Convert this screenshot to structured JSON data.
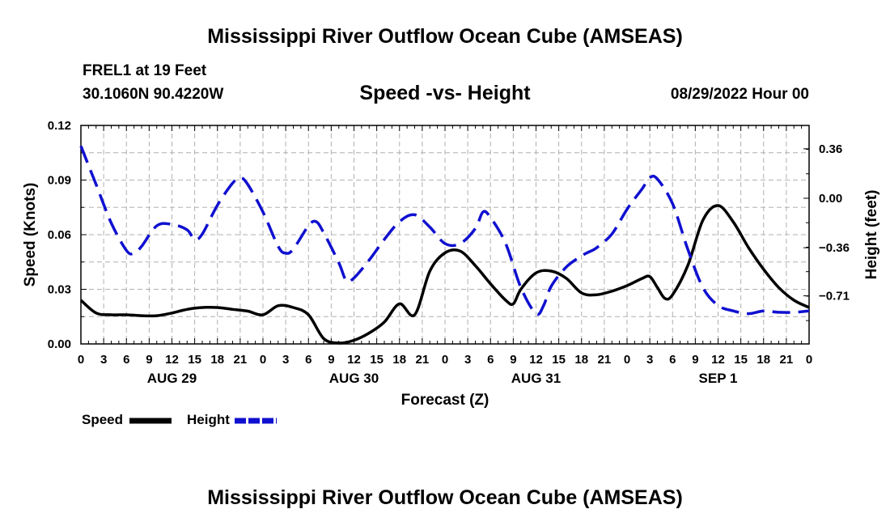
{
  "title": "Mississippi River Outflow Ocean Cube (AMSEAS)",
  "station": {
    "name": "FREL1 at 19 Feet",
    "coords": "30.1060N  90.4220W"
  },
  "run_stamp": "08/29/2022 Hour 00",
  "footer_title": "Mississippi River Outflow Ocean Cube (AMSEAS)",
  "colors": {
    "speed": "#000000",
    "height": "#1010d0",
    "grid": "#b0b0b0"
  },
  "chart_data": {
    "type": "line",
    "title": "Speed -vs- Height",
    "xlabel": "Forecast (Z)",
    "ylabel_left": "Speed (Knots)",
    "ylabel_right": "Height (feet)",
    "x_range_hours": [
      0,
      96
    ],
    "x_tick_step_hours": 3,
    "x_tick_labels": [
      "0",
      "3",
      "6",
      "9",
      "12",
      "15",
      "18",
      "21",
      "0",
      "3",
      "6",
      "9",
      "12",
      "15",
      "18",
      "21",
      "0",
      "3",
      "6",
      "9",
      "12",
      "15",
      "18",
      "21",
      "0",
      "3",
      "6",
      "9",
      "12",
      "15",
      "18",
      "21",
      "0"
    ],
    "day_labels": [
      {
        "label": "AUG 29",
        "hour": 12
      },
      {
        "label": "AUG 30",
        "hour": 36
      },
      {
        "label": "AUG 31",
        "hour": 60
      },
      {
        "label": "SEP 1",
        "hour": 84
      }
    ],
    "ylim_left": [
      0,
      0.12
    ],
    "yticks_left": [
      "0.00",
      "0.03",
      "0.06",
      "0.09",
      "0.12"
    ],
    "ylim_right": [
      -1.06,
      0.53
    ],
    "yticks_right": [
      {
        "value": 0.36,
        "label": "0.36"
      },
      {
        "value": 0.0,
        "label": "0.00"
      },
      {
        "value": -0.36,
        "label": "−0.36"
      },
      {
        "value": -0.71,
        "label": "−0.71"
      }
    ],
    "series": [
      {
        "name": "Speed",
        "axis": "left",
        "style": "solid",
        "points": [
          [
            0,
            0.024
          ],
          [
            2,
            0.017
          ],
          [
            4,
            0.016
          ],
          [
            6,
            0.016
          ],
          [
            8,
            0.0155
          ],
          [
            10,
            0.0155
          ],
          [
            12,
            0.017
          ],
          [
            14,
            0.019
          ],
          [
            16,
            0.02
          ],
          [
            18,
            0.02
          ],
          [
            20,
            0.019
          ],
          [
            22,
            0.018
          ],
          [
            24,
            0.016
          ],
          [
            26,
            0.021
          ],
          [
            28,
            0.02
          ],
          [
            30,
            0.016
          ],
          [
            32,
            0.003
          ],
          [
            34,
            0.0005
          ],
          [
            36,
            0.002
          ],
          [
            38,
            0.006
          ],
          [
            40,
            0.012
          ],
          [
            42,
            0.022
          ],
          [
            44,
            0.016
          ],
          [
            46,
            0.04
          ],
          [
            48,
            0.05
          ],
          [
            50,
            0.051
          ],
          [
            52,
            0.043
          ],
          [
            54,
            0.033
          ],
          [
            56,
            0.024
          ],
          [
            57,
            0.022
          ],
          [
            58,
            0.03
          ],
          [
            60,
            0.039
          ],
          [
            62,
            0.04
          ],
          [
            64,
            0.036
          ],
          [
            66,
            0.028
          ],
          [
            68,
            0.027
          ],
          [
            70,
            0.029
          ],
          [
            72,
            0.032
          ],
          [
            74,
            0.036
          ],
          [
            75,
            0.037
          ],
          [
            76,
            0.031
          ],
          [
            77,
            0.025
          ],
          [
            78,
            0.027
          ],
          [
            80,
            0.043
          ],
          [
            82,
            0.068
          ],
          [
            84,
            0.076
          ],
          [
            86,
            0.067
          ],
          [
            88,
            0.053
          ],
          [
            90,
            0.041
          ],
          [
            92,
            0.031
          ],
          [
            94,
            0.024
          ],
          [
            96,
            0.02
          ]
        ]
      },
      {
        "name": "Height",
        "axis": "right",
        "style": "dashed",
        "points": [
          [
            0,
            0.38
          ],
          [
            2,
            0.1
          ],
          [
            4,
            -0.18
          ],
          [
            6,
            -0.38
          ],
          [
            7,
            -0.4
          ],
          [
            8,
            -0.35
          ],
          [
            10,
            -0.2
          ],
          [
            12,
            -0.19
          ],
          [
            14,
            -0.23
          ],
          [
            15,
            -0.3
          ],
          [
            16,
            -0.26
          ],
          [
            18,
            -0.05
          ],
          [
            20,
            0.11
          ],
          [
            21,
            0.15
          ],
          [
            22,
            0.1
          ],
          [
            24,
            -0.1
          ],
          [
            26,
            -0.35
          ],
          [
            27,
            -0.4
          ],
          [
            28,
            -0.37
          ],
          [
            30,
            -0.2
          ],
          [
            31,
            -0.17
          ],
          [
            32,
            -0.25
          ],
          [
            34,
            -0.47
          ],
          [
            35,
            -0.6
          ],
          [
            36,
            -0.58
          ],
          [
            38,
            -0.45
          ],
          [
            40,
            -0.3
          ],
          [
            42,
            -0.17
          ],
          [
            44,
            -0.12
          ],
          [
            46,
            -0.21
          ],
          [
            48,
            -0.33
          ],
          [
            50,
            -0.33
          ],
          [
            52,
            -0.22
          ],
          [
            53,
            -0.1
          ],
          [
            54,
            -0.14
          ],
          [
            56,
            -0.33
          ],
          [
            58,
            -0.65
          ],
          [
            60,
            -0.84
          ],
          [
            61,
            -0.78
          ],
          [
            62,
            -0.64
          ],
          [
            64,
            -0.5
          ],
          [
            66,
            -0.42
          ],
          [
            67,
            -0.39
          ],
          [
            68,
            -0.36
          ],
          [
            70,
            -0.26
          ],
          [
            72,
            -0.08
          ],
          [
            74,
            0.07
          ],
          [
            75,
            0.15
          ],
          [
            76,
            0.14
          ],
          [
            78,
            -0.04
          ],
          [
            80,
            -0.37
          ],
          [
            82,
            -0.65
          ],
          [
            84,
            -0.78
          ],
          [
            86,
            -0.82
          ],
          [
            88,
            -0.84
          ],
          [
            90,
            -0.82
          ],
          [
            92,
            -0.83
          ],
          [
            94,
            -0.83
          ],
          [
            96,
            -0.82
          ]
        ]
      }
    ],
    "legend": [
      {
        "label": "Speed",
        "series": "Speed"
      },
      {
        "label": "Height",
        "series": "Height"
      }
    ]
  }
}
